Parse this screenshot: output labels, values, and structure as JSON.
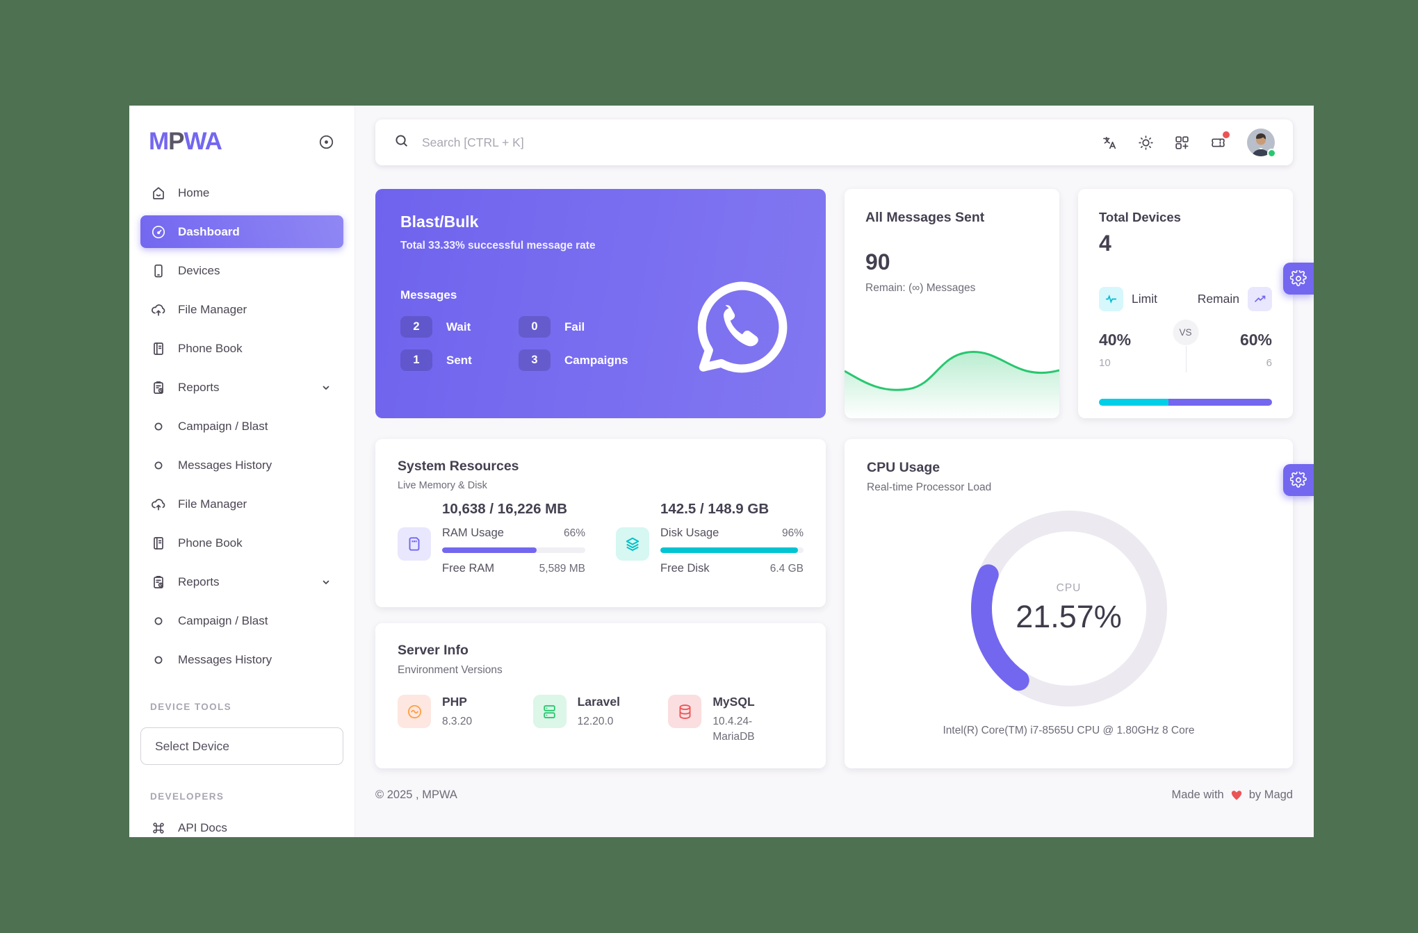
{
  "app": {
    "logo_text_m": "M",
    "logo_text_p": "P",
    "logo_text_wa": "WA"
  },
  "colors": {
    "primary": "#7367f0",
    "cyan": "#00cfe8",
    "green": "#28c76f",
    "red": "#ea5455",
    "orange": "#ff9f43"
  },
  "sidebar": {
    "items": [
      {
        "label": "Home",
        "icon": "home-icon"
      },
      {
        "label": "Dashboard",
        "icon": "dashboard-icon",
        "active": true
      },
      {
        "label": "Devices",
        "icon": "smartphone-icon"
      },
      {
        "label": "File Manager",
        "icon": "cloud-upload-icon"
      },
      {
        "label": "Phone Book",
        "icon": "book-icon"
      },
      {
        "label": "Reports",
        "icon": "report-icon",
        "chevron": true
      },
      {
        "label": "Campaign / Blast",
        "icon": "circle-icon"
      },
      {
        "label": "Messages History",
        "icon": "circle-icon"
      },
      {
        "label": "File Manager",
        "icon": "cloud-upload-icon"
      },
      {
        "label": "Phone Book",
        "icon": "book-icon"
      },
      {
        "label": "Reports",
        "icon": "report-icon",
        "chevron": true
      },
      {
        "label": "Campaign / Blast",
        "icon": "circle-icon"
      },
      {
        "label": "Messages History",
        "icon": "circle-icon"
      }
    ],
    "device_tools_label": "DEVICE TOOLS",
    "select_device_label": "Select Device",
    "developers_label": "DEVELOPERS",
    "api_docs_label": "API Docs"
  },
  "topbar": {
    "search_placeholder": "Search [CTRL + K]",
    "icons": [
      {
        "name": "language-icon"
      },
      {
        "name": "sun-icon"
      },
      {
        "name": "grid-plus-icon"
      },
      {
        "name": "ticket-icon",
        "badge": true
      }
    ]
  },
  "blast": {
    "title": "Blast/Bulk",
    "subtitle": "Total 33.33% successful message rate",
    "messages_label": "Messages",
    "stats": [
      {
        "value": "2",
        "label": "Wait"
      },
      {
        "value": "0",
        "label": "Fail"
      },
      {
        "value": "1",
        "label": "Sent"
      },
      {
        "value": "3",
        "label": "Campaigns"
      }
    ]
  },
  "messages_sent": {
    "title": "All Messages Sent",
    "value": "90",
    "remain": "Remain: (∞) Messages"
  },
  "devices_card": {
    "title": "Total Devices",
    "value": "4",
    "limit_label": "Limit",
    "remain_label": "Remain",
    "vs_label": "VS",
    "limit_percent_label": "40%",
    "limit_percent": 40,
    "limit_count": "10",
    "remain_percent_label": "60%",
    "remain_percent": 60,
    "remain_count": "6"
  },
  "system": {
    "title": "System Resources",
    "subtitle": "Live Memory & Disk",
    "ram": {
      "icon": "memory-icon",
      "heading": "10,638 / 16,226 MB",
      "usage_label": "RAM Usage",
      "usage_percent": 66,
      "usage_percent_label": "66%",
      "free_label": "Free RAM",
      "free_value": "5,589 MB"
    },
    "disk": {
      "icon": "layers-icon",
      "heading": "142.5 / 148.9 GB",
      "usage_label": "Disk Usage",
      "usage_percent": 96,
      "usage_percent_label": "96%",
      "free_label": "Free Disk",
      "free_value": "6.4 GB"
    }
  },
  "server": {
    "title": "Server Info",
    "subtitle": "Environment Versions",
    "items": [
      {
        "name": "PHP",
        "version": "8.3.20",
        "icon": "php-icon",
        "theme": "peach"
      },
      {
        "name": "Laravel",
        "version": "12.20.0",
        "icon": "server-icon",
        "theme": "green"
      },
      {
        "name": "MySQL",
        "version": "10.4.24-MariaDB",
        "icon": "database-icon",
        "theme": "red"
      }
    ]
  },
  "cpu": {
    "title": "CPU Usage",
    "subtitle": "Real-time Processor Load",
    "gauge_label": "CPU",
    "gauge_value_label": "21.57%",
    "gauge_percent": 21.57,
    "footer": "Intel(R) Core(TM) i7-8565U CPU @ 1.80GHz 8 Core"
  },
  "footer": {
    "copyright": "© 2025 , MPWA",
    "made_with": "Made with",
    "by": "by Magd"
  }
}
